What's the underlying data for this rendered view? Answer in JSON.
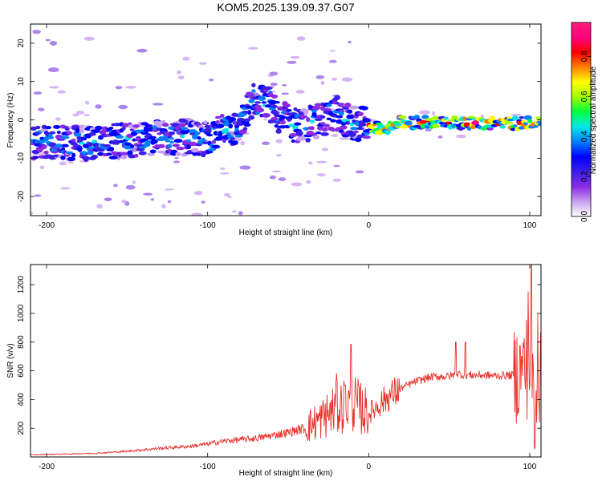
{
  "title": "KOM5.2025.139.09.37.G07",
  "chart_data": [
    {
      "type": "heatmap",
      "xlabel": "Height of straight line (km)",
      "ylabel": "Frequency (Hz)",
      "xlim": [
        -210,
        107
      ],
      "ylim": [
        -25,
        25
      ],
      "xticks": [
        -200,
        -100,
        0,
        100
      ],
      "yticks": [
        -20,
        -10,
        0,
        10,
        20
      ],
      "colorbar": {
        "label": "Normalized spectral amplitude",
        "range": [
          0,
          0.97
        ],
        "ticks": [
          "0.0",
          "0.2",
          "0.4",
          "0.6",
          "0.8"
        ],
        "colormap": [
          "#ffffff",
          "#c8a0f0",
          "#8a2be2",
          "#3a1ee8",
          "#0000ff",
          "#0080ff",
          "#00e6e6",
          "#00ff40",
          "#a0ff00",
          "#ffff00",
          "#ff8000",
          "#ff0000",
          "#ff0080",
          "#ff1e78"
        ]
      },
      "ridge": [
        {
          "x": -200,
          "y": -6
        },
        {
          "x": -180,
          "y": -6
        },
        {
          "x": -160,
          "y": -5.5
        },
        {
          "x": -140,
          "y": -5
        },
        {
          "x": -120,
          "y": -4.5
        },
        {
          "x": -100,
          "y": -5
        },
        {
          "x": -90,
          "y": -3
        },
        {
          "x": -80,
          "y": -2
        },
        {
          "x": -72,
          "y": 5
        },
        {
          "x": -62,
          "y": 4
        },
        {
          "x": -50,
          "y": -1
        },
        {
          "x": -40,
          "y": -1.5
        },
        {
          "x": -30,
          "y": 0
        },
        {
          "x": -20,
          "y": 1.5
        },
        {
          "x": -10,
          "y": -1
        },
        {
          "x": 0,
          "y": -1.5
        },
        {
          "x": 10,
          "y": -2
        },
        {
          "x": 20,
          "y": -0.8
        },
        {
          "x": 40,
          "y": -0.6
        },
        {
          "x": 60,
          "y": -0.7
        },
        {
          "x": 80,
          "y": -1
        },
        {
          "x": 100,
          "y": -1
        }
      ]
    },
    {
      "type": "line",
      "xlabel": "Height of straight line (km)",
      "ylabel": "SNR (v/v)",
      "xlim": [
        -210,
        107
      ],
      "ylim": [
        0,
        1340
      ],
      "xticks": [
        -200,
        -100,
        0,
        100
      ],
      "yticks": [
        200,
        400,
        600,
        800,
        1000,
        1200
      ],
      "series": [
        {
          "color": "#e8302a",
          "x": [
            -210,
            -190,
            -170,
            -150,
            -130,
            -110,
            -100,
            -90,
            -80,
            -70,
            -60,
            -50,
            -40,
            -30,
            -20,
            -10,
            0,
            10,
            20,
            30,
            40,
            50,
            55,
            60,
            70,
            80,
            90,
            95,
            100,
            103,
            107
          ],
          "y": [
            15,
            20,
            25,
            40,
            60,
            75,
            90,
            110,
            120,
            130,
            150,
            170,
            200,
            260,
            340,
            380,
            300,
            400,
            480,
            530,
            560,
            560,
            580,
            570,
            570,
            565,
            570,
            600,
            650,
            500,
            550
          ]
        }
      ],
      "spikes": [
        {
          "x": -20,
          "y": 580
        },
        {
          "x": -15,
          "y": 500
        },
        {
          "x": -11,
          "y": 785
        },
        {
          "x": 54,
          "y": 800
        },
        {
          "x": 60,
          "y": 800
        },
        {
          "x": 95,
          "y": 700
        },
        {
          "x": 99,
          "y": 1150
        },
        {
          "x": 101,
          "y": 1340
        },
        {
          "x": 103,
          "y": 60
        },
        {
          "x": 105,
          "y": 1000
        }
      ]
    }
  ]
}
